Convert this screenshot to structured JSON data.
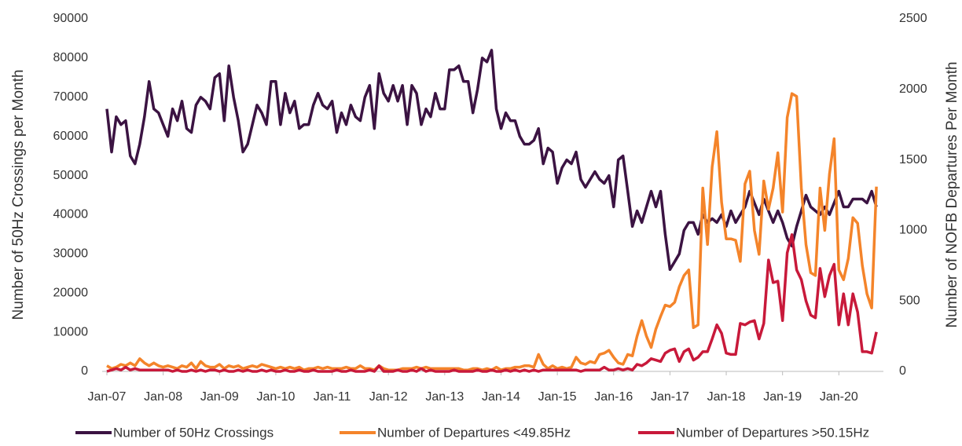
{
  "chart_data": {
    "type": "line",
    "y_label": "Number of 50Hz Crossings per Month",
    "y2_label": "Number of NOFB Departures Per Month",
    "categories": [
      "Jan-07",
      null,
      null,
      null,
      null,
      null,
      null,
      null,
      null,
      null,
      null,
      null,
      "Jan-08",
      null,
      null,
      null,
      null,
      null,
      null,
      null,
      null,
      null,
      null,
      null,
      "Jan-09",
      null,
      null,
      null,
      null,
      null,
      null,
      null,
      null,
      null,
      null,
      null,
      "Jan-10",
      null,
      null,
      null,
      null,
      null,
      null,
      null,
      null,
      null,
      null,
      null,
      "Jan-11",
      null,
      null,
      null,
      null,
      null,
      null,
      null,
      null,
      null,
      null,
      null,
      "Jan-12",
      null,
      null,
      null,
      null,
      null,
      null,
      null,
      null,
      null,
      null,
      null,
      "Jan-13",
      null,
      null,
      null,
      null,
      null,
      null,
      null,
      null,
      null,
      null,
      null,
      "Jan-14",
      null,
      null,
      null,
      null,
      null,
      null,
      null,
      null,
      null,
      null,
      null,
      "Jan-15",
      null,
      null,
      null,
      null,
      null,
      null,
      null,
      null,
      null,
      null,
      null,
      "Jan-16",
      null,
      null,
      null,
      null,
      null,
      null,
      null,
      null,
      null,
      null,
      null,
      "Jan-17",
      null,
      null,
      null,
      null,
      null,
      null,
      null,
      null,
      null,
      null,
      null,
      "Jan-18",
      null,
      null,
      null,
      null,
      null,
      null,
      null,
      null,
      null,
      null,
      null,
      "Jan-19",
      null,
      null,
      null,
      null,
      null,
      null,
      null,
      null,
      null,
      null,
      null,
      "Jan-20",
      null,
      null,
      null,
      null,
      null,
      null,
      null,
      null
    ],
    "series": [
      {
        "name": "Number of 50Hz Crossings",
        "color": "#3b1342",
        "values": [
          67000,
          56000,
          65000,
          63000,
          64000,
          55000,
          53000,
          58000,
          65000,
          74000,
          67000,
          66000,
          63000,
          60000,
          67000,
          64000,
          69000,
          62000,
          61000,
          68000,
          70000,
          69000,
          67000,
          75000,
          76000,
          64000,
          78000,
          70000,
          64000,
          56000,
          58000,
          63000,
          68000,
          66000,
          63000,
          74000,
          74000,
          63000,
          71000,
          66000,
          69000,
          62000,
          63000,
          63000,
          68000,
          71000,
          68000,
          67000,
          69000,
          61000,
          66000,
          63000,
          68000,
          65000,
          64000,
          70000,
          73000,
          62000,
          76000,
          71000,
          69000,
          73000,
          69000,
          73000,
          63000,
          73000,
          71000,
          63000,
          67000,
          65000,
          71000,
          67000,
          67000,
          77000,
          77000,
          78000,
          74000,
          74000,
          66000,
          72000,
          80000,
          79000,
          82000,
          67000,
          62000,
          66000,
          64000,
          64000,
          60000,
          58000,
          58000,
          59000,
          62000,
          53000,
          57000,
          56000,
          48000,
          52000,
          54000,
          53000,
          56000,
          49000,
          47000,
          49000,
          51000,
          49000,
          48000,
          50000,
          42000,
          54000,
          55000,
          46000,
          37000,
          41000,
          38000,
          42000,
          46000,
          42000,
          46000,
          35000,
          26000,
          28000,
          30000,
          36000,
          38000,
          38000,
          35000,
          40000,
          38000,
          39000,
          38000,
          40000,
          37000,
          41000,
          38000,
          40000,
          42000,
          46000,
          43000,
          40000,
          44000,
          41000,
          38000,
          41000,
          38000,
          34000,
          32000,
          37000,
          41000,
          45000,
          42000,
          41000,
          40000,
          42000,
          40000,
          43000,
          46000,
          42000,
          42000,
          44000,
          44000,
          44000,
          43000,
          46000,
          42000
        ]
      },
      {
        "name": "Number of Departures <49.85Hz",
        "color": "#f4842a",
        "axis": "y2",
        "values": [
          40,
          20,
          30,
          50,
          40,
          60,
          40,
          90,
          60,
          40,
          60,
          40,
          30,
          40,
          30,
          20,
          40,
          30,
          60,
          20,
          70,
          40,
          30,
          30,
          50,
          20,
          40,
          30,
          40,
          20,
          30,
          40,
          30,
          50,
          40,
          30,
          20,
          30,
          20,
          30,
          20,
          30,
          10,
          20,
          20,
          30,
          20,
          30,
          20,
          20,
          20,
          30,
          20,
          20,
          40,
          20,
          20,
          10,
          40,
          20,
          10,
          10,
          10,
          20,
          20,
          20,
          30,
          20,
          30,
          20,
          20,
          20,
          20,
          20,
          20,
          20,
          10,
          10,
          20,
          20,
          10,
          20,
          10,
          30,
          10,
          20,
          20,
          30,
          30,
          40,
          40,
          30,
          120,
          50,
          20,
          40,
          20,
          30,
          20,
          30,
          100,
          60,
          50,
          70,
          60,
          120,
          130,
          150,
          100,
          60,
          50,
          120,
          110,
          250,
          360,
          250,
          170,
          300,
          390,
          470,
          460,
          490,
          600,
          680,
          720,
          310,
          330,
          1300,
          900,
          1450,
          1700,
          1200,
          940,
          940,
          930,
          780,
          1330,
          1420,
          1000,
          830,
          1350,
          1150,
          1300,
          1550,
          1130,
          1800,
          1970,
          1950,
          1300,
          900,
          700,
          680,
          1300,
          1000,
          1400,
          1650,
          720,
          650,
          800,
          1090,
          1050,
          750,
          550,
          450,
          1310
        ]
      },
      {
        "name": "Number of Departures >50.15Hz",
        "color": "#c8193a",
        "axis": "y2",
        "values": [
          0,
          10,
          20,
          10,
          30,
          10,
          20,
          10,
          10,
          10,
          10,
          10,
          10,
          10,
          0,
          10,
          0,
          0,
          10,
          0,
          10,
          0,
          10,
          10,
          0,
          10,
          0,
          0,
          10,
          0,
          10,
          0,
          0,
          10,
          0,
          10,
          0,
          0,
          10,
          0,
          0,
          10,
          0,
          0,
          10,
          0,
          0,
          0,
          0,
          10,
          0,
          0,
          10,
          0,
          0,
          0,
          10,
          0,
          40,
          0,
          0,
          0,
          10,
          0,
          0,
          10,
          0,
          20,
          0,
          10,
          0,
          0,
          0,
          0,
          10,
          0,
          0,
          0,
          0,
          10,
          0,
          0,
          10,
          0,
          0,
          10,
          0,
          10,
          0,
          10,
          0,
          10,
          0,
          10,
          10,
          10,
          10,
          10,
          10,
          10,
          10,
          0,
          10,
          10,
          10,
          10,
          30,
          10,
          10,
          20,
          10,
          20,
          10,
          50,
          40,
          60,
          90,
          80,
          70,
          130,
          150,
          160,
          70,
          140,
          160,
          80,
          100,
          140,
          140,
          230,
          330,
          270,
          130,
          120,
          120,
          340,
          330,
          350,
          360,
          230,
          340,
          790,
          630,
          640,
          360,
          840,
          970,
          720,
          650,
          500,
          400,
          380,
          730,
          530,
          680,
          760,
          330,
          550,
          330,
          550,
          420,
          140,
          140,
          130,
          280
        ]
      }
    ],
    "ylim": [
      0,
      90000
    ],
    "yticks": [
      0,
      10000,
      20000,
      30000,
      40000,
      50000,
      60000,
      70000,
      80000,
      90000
    ],
    "y2lim": [
      0,
      2500
    ],
    "y2ticks": [
      0,
      500,
      1000,
      1500,
      2000,
      2500
    ]
  }
}
